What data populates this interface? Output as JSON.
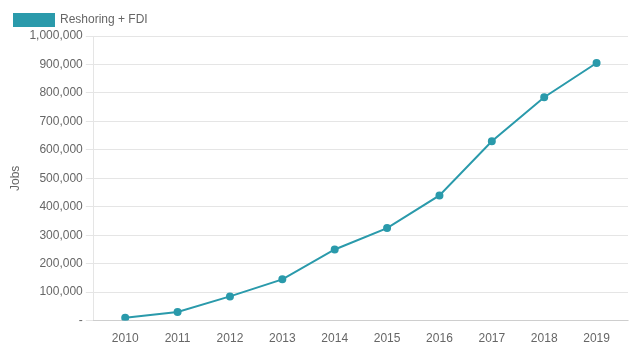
{
  "chart_data": {
    "type": "line",
    "x": [
      2010,
      2011,
      2012,
      2013,
      2014,
      2015,
      2016,
      2017,
      2018,
      2019
    ],
    "series": [
      {
        "name": "Reshoring + FDI",
        "color": "#2a9aab",
        "marker": "circle",
        "values": [
          10000,
          30000,
          85000,
          145000,
          250000,
          325000,
          440000,
          630000,
          785000,
          905000
        ]
      }
    ],
    "ylabel": "Jobs",
    "xlim": [
      2009.4,
      2019.6
    ],
    "xticks": [
      2010,
      2011,
      2012,
      2013,
      2014,
      2015,
      2016,
      2017,
      2018,
      2019
    ],
    "ylim": [
      0,
      1000000
    ],
    "yticks": [
      {
        "value": 0,
        "label": "-"
      },
      {
        "value": 100000,
        "label": "100,000"
      },
      {
        "value": 200000,
        "label": "200,000"
      },
      {
        "value": 300000,
        "label": "300,000"
      },
      {
        "value": 400000,
        "label": "400,000"
      },
      {
        "value": 500000,
        "label": "500,000"
      },
      {
        "value": 600000,
        "label": "600,000"
      },
      {
        "value": 700000,
        "label": "700,000"
      },
      {
        "value": 800000,
        "label": "800,000"
      },
      {
        "value": 900000,
        "label": "900,000"
      },
      {
        "value": 1000000,
        "label": "1,000,000"
      }
    ],
    "grid": "y",
    "legend": "upper left"
  }
}
